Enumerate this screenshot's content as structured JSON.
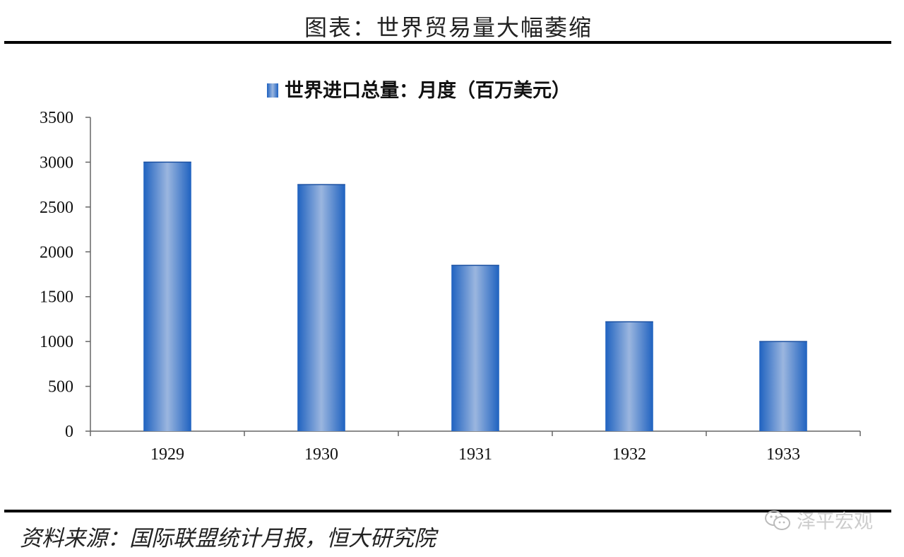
{
  "header": {
    "title": "图表：世界贸易量大幅萎缩"
  },
  "source": {
    "text": "资料来源：国际联盟统计月报，恒大研究院"
  },
  "watermark": {
    "text": "泽平宏观",
    "icon": "wechat-icon"
  },
  "colors": {
    "bar_dark": "#1f62c0",
    "bar_light": "#9bb6df",
    "rule": "#000000"
  },
  "chart_data": {
    "type": "bar",
    "categories": [
      "1929",
      "1930",
      "1931",
      "1932",
      "1933"
    ],
    "series": [
      {
        "name": "世界进口总量：月度（百万美元）",
        "values": [
          3000,
          2750,
          1850,
          1220,
          1000
        ]
      }
    ],
    "ylim": [
      0,
      3500
    ],
    "yticks": [
      0,
      500,
      1000,
      1500,
      2000,
      2500,
      3000,
      3500
    ],
    "grid": false,
    "legend": "top-center"
  }
}
